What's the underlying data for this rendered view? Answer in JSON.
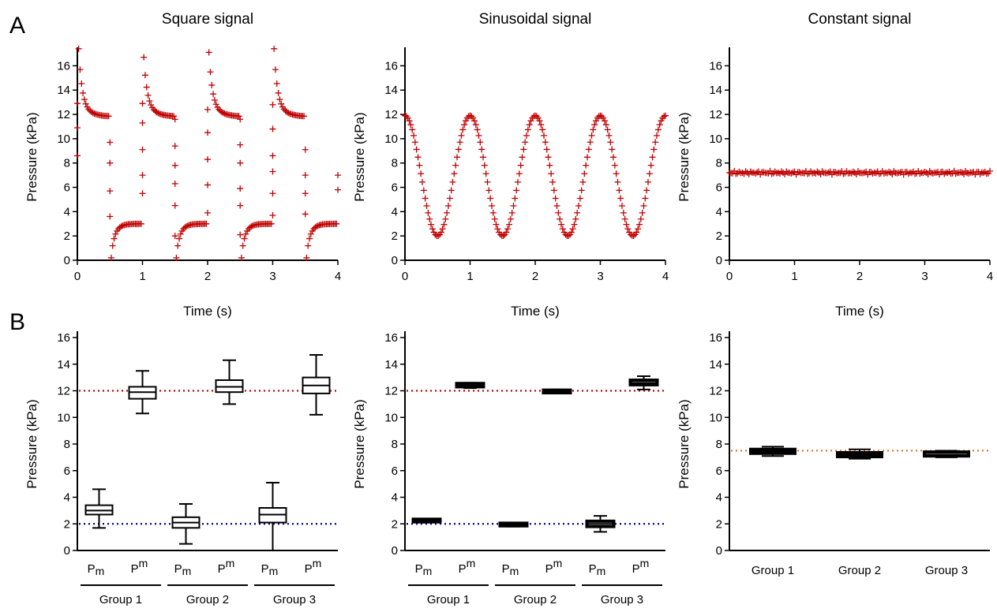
{
  "panels": {
    "a": "A",
    "b": "B"
  },
  "colors": {
    "marker": "#c00000",
    "maxLine": "#c00000",
    "minLine": "#00009b",
    "constLine": "#e07020",
    "axis": "#000000"
  },
  "chart_data": [
    {
      "type": "scatter",
      "title": "Square signal",
      "xlabel": "Time (s)",
      "ylabel": "Pressure (kPa)",
      "xlim": [
        0,
        4
      ],
      "ylim": [
        0,
        17
      ],
      "xticks": [
        0,
        1,
        2,
        3,
        4
      ],
      "yticks": [
        0,
        2,
        4,
        6,
        8,
        10,
        12,
        14,
        16
      ],
      "marker": "plus",
      "signal": {
        "shape": "square",
        "period_s": 1,
        "high_start": 14.0,
        "high_settle": 11.8,
        "low_start": 0.8,
        "low_settle": 3.0
      },
      "peaks": [
        16.3,
        15.6,
        16.0,
        16.3
      ],
      "transition_points": [
        {
          "x": 0.0,
          "y": [
            8.6,
            10.9,
            12.9
          ]
        },
        {
          "x": 0.5,
          "y": [
            9.7,
            8.0,
            5.7,
            3.6
          ]
        },
        {
          "x": 1.0,
          "y": [
            5.5,
            7.0,
            9.1,
            11.3,
            12.9
          ]
        },
        {
          "x": 1.5,
          "y": [
            11.6,
            9.4,
            7.8,
            6.3,
            4.5,
            2.0
          ]
        },
        {
          "x": 2.0,
          "y": [
            3.9,
            6.2,
            8.3,
            10.5,
            12.4
          ]
        },
        {
          "x": 2.5,
          "y": [
            11.6,
            9.5,
            8.0,
            5.9,
            4.5,
            2.1
          ]
        },
        {
          "x": 3.0,
          "y": [
            3.7,
            5.5,
            7.3,
            8.6,
            10.8,
            12.8
          ]
        },
        {
          "x": 3.5,
          "y": [
            9.1,
            7.0,
            5.5,
            3.8
          ]
        },
        {
          "x": 4.0,
          "y": [
            7.0,
            5.8
          ]
        }
      ]
    },
    {
      "type": "scatter",
      "title": "Sinusoidal signal",
      "xlabel": "Time (s)",
      "ylabel": "Pressure (kPa)",
      "xlim": [
        0,
        4
      ],
      "ylim": [
        0,
        17
      ],
      "xticks": [
        0,
        1,
        2,
        3,
        4
      ],
      "yticks": [
        0,
        2,
        4,
        6,
        8,
        10,
        12,
        14,
        16
      ],
      "marker": "plus",
      "signal": {
        "shape": "sine",
        "period_s": 1,
        "max": 11.9,
        "min": 2.0,
        "starts_at": "max"
      }
    },
    {
      "type": "scatter",
      "title": "Constant signal",
      "xlabel": "Time (s)",
      "ylabel": "Pressure (kPa)",
      "xlim": [
        0,
        4
      ],
      "ylim": [
        0,
        17
      ],
      "xticks": [
        0,
        1,
        2,
        3,
        4
      ],
      "yticks": [
        0,
        2,
        4,
        6,
        8,
        10,
        12,
        14,
        16
      ],
      "marker": "plus",
      "signal": {
        "shape": "constant",
        "value": 7.2,
        "noise": 0.15
      }
    },
    {
      "type": "box",
      "ylabel": "Pressure (kPa)",
      "ylim": [
        0,
        16
      ],
      "yticks": [
        0,
        2,
        4,
        6,
        8,
        10,
        12,
        14,
        16
      ],
      "categories": [
        "Pm",
        "Pm",
        "Pm",
        "Pm",
        "Pm",
        "Pm"
      ],
      "category_kind": [
        "min",
        "max",
        "min",
        "max",
        "min",
        "max"
      ],
      "groups": [
        "Group 1",
        "Group 2",
        "Group 3"
      ],
      "boxes": [
        {
          "min": 1.7,
          "q1": 2.7,
          "median": 3.0,
          "q3": 3.4,
          "max": 4.6
        },
        {
          "min": 10.3,
          "q1": 11.4,
          "median": 11.9,
          "q3": 12.3,
          "max": 13.5
        },
        {
          "min": 0.5,
          "q1": 1.7,
          "median": 2.1,
          "q3": 2.5,
          "max": 3.5
        },
        {
          "min": 11.0,
          "q1": 11.9,
          "median": 12.3,
          "q3": 12.8,
          "max": 14.3
        },
        {
          "min": 0.0,
          "q1": 2.1,
          "median": 2.7,
          "q3": 3.2,
          "max": 5.1
        },
        {
          "min": 10.2,
          "q1": 11.8,
          "median": 12.4,
          "q3": 13.0,
          "max": 14.7
        }
      ],
      "reference_lines": [
        {
          "y": 12.0,
          "color": "#c00000"
        },
        {
          "y": 2.0,
          "color": "#00009b"
        }
      ]
    },
    {
      "type": "box",
      "ylabel": "Pressure (kPa)",
      "ylim": [
        0,
        16
      ],
      "yticks": [
        0,
        2,
        4,
        6,
        8,
        10,
        12,
        14,
        16
      ],
      "categories": [
        "Pm",
        "Pm",
        "Pm",
        "Pm",
        "Pm",
        "Pm"
      ],
      "category_kind": [
        "min",
        "max",
        "min",
        "max",
        "min",
        "max"
      ],
      "groups": [
        "Group 1",
        "Group 2",
        "Group 3"
      ],
      "boxes": [
        {
          "min": 2.1,
          "q1": 2.15,
          "median": 2.25,
          "q3": 2.35,
          "max": 2.4
        },
        {
          "min": 12.2,
          "q1": 12.3,
          "median": 12.45,
          "q3": 12.55,
          "max": 12.6
        },
        {
          "min": 1.8,
          "q1": 1.85,
          "median": 1.95,
          "q3": 2.05,
          "max": 2.1
        },
        {
          "min": 11.8,
          "q1": 11.85,
          "median": 11.95,
          "q3": 12.05,
          "max": 12.1
        },
        {
          "min": 1.4,
          "q1": 1.8,
          "median": 2.0,
          "q3": 2.2,
          "max": 2.6
        },
        {
          "min": 12.1,
          "q1": 12.45,
          "median": 12.6,
          "q3": 12.8,
          "max": 13.1
        }
      ],
      "reference_lines": [
        {
          "y": 12.0,
          "color": "#c00000"
        },
        {
          "y": 2.0,
          "color": "#00009b"
        }
      ]
    },
    {
      "type": "box",
      "ylabel": "Pressure (kPa)",
      "ylim": [
        0,
        16
      ],
      "yticks": [
        0,
        2,
        4,
        6,
        8,
        10,
        12,
        14,
        16
      ],
      "categories": [
        "Group 1",
        "Group 2",
        "Group 3"
      ],
      "boxes": [
        {
          "min": 7.1,
          "q1": 7.3,
          "median": 7.45,
          "q3": 7.6,
          "max": 7.8
        },
        {
          "min": 6.9,
          "q1": 7.05,
          "median": 7.2,
          "q3": 7.35,
          "max": 7.6
        },
        {
          "min": 7.0,
          "q1": 7.1,
          "median": 7.2,
          "q3": 7.4,
          "max": 7.5
        }
      ],
      "reference_lines": [
        {
          "y": 7.5,
          "color": "#e07020"
        }
      ]
    }
  ]
}
